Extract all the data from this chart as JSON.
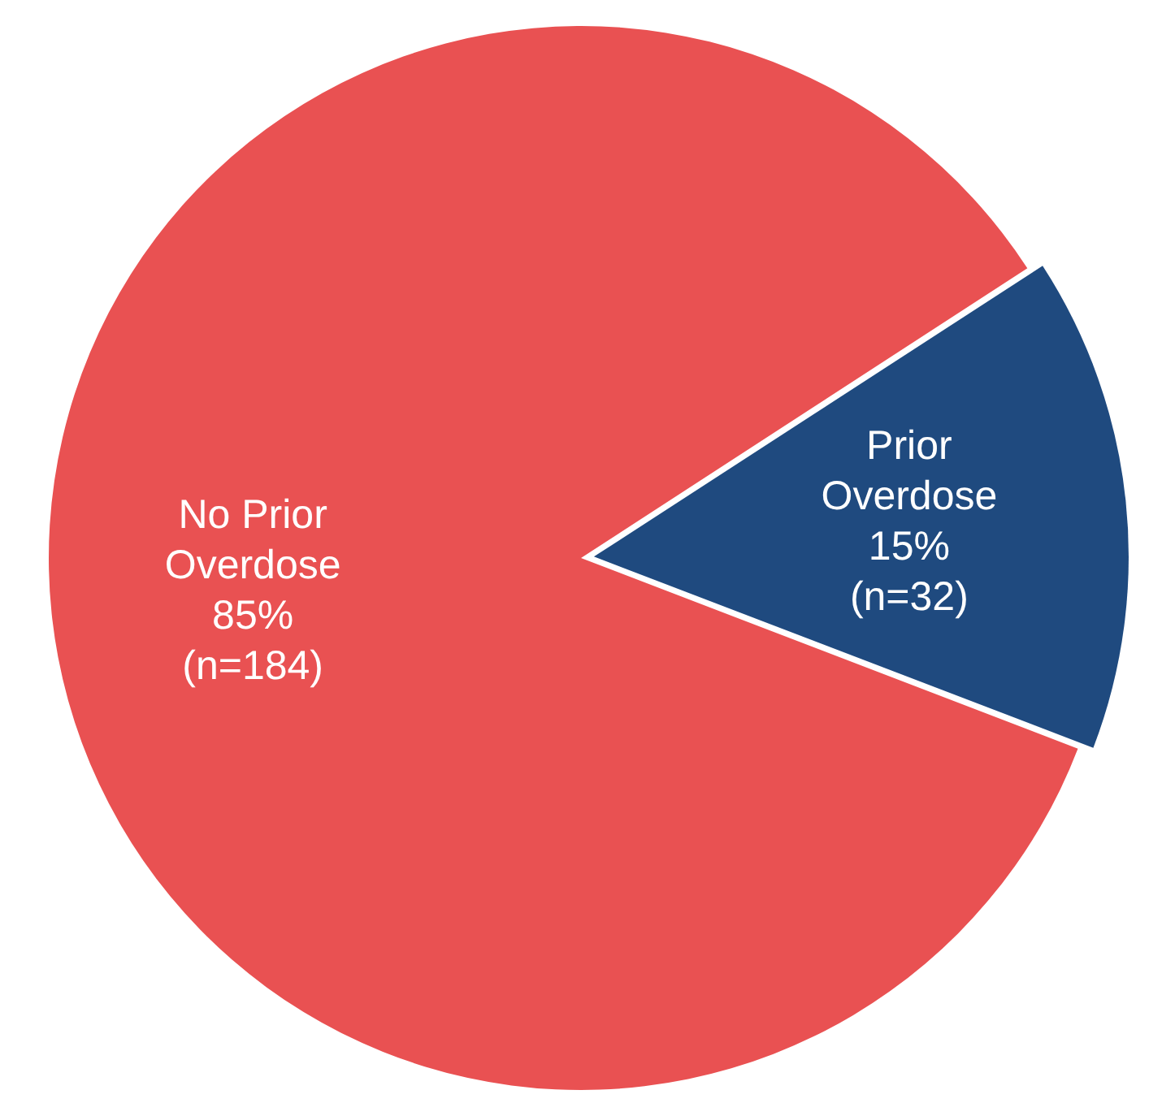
{
  "chart_data": {
    "type": "pie",
    "categories": [
      "Prior Overdose",
      "No Prior Overdose"
    ],
    "values": [
      15,
      85
    ],
    "value_labels": [
      "15% (n=32)",
      "85% (n=184)"
    ],
    "colors": [
      "#1f4a7f",
      "#e95152"
    ],
    "legend": false
  }
}
